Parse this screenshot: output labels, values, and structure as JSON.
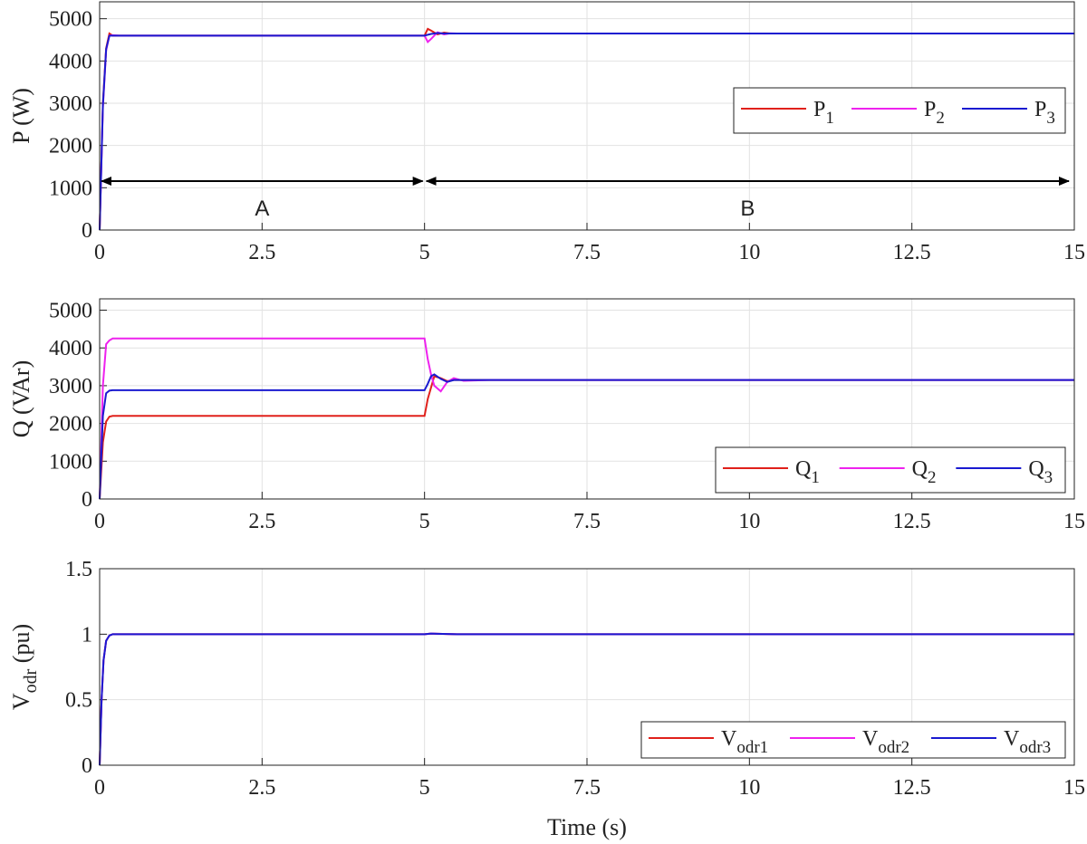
{
  "chart_data": [
    {
      "type": "line",
      "ylabel": "P (W)",
      "xlim": [
        0,
        15
      ],
      "xticks": [
        0,
        2.5,
        5,
        7.5,
        10,
        12.5,
        15
      ],
      "ylim": [
        0,
        5400
      ],
      "yticks": [
        0,
        1000,
        2000,
        3000,
        4000,
        5000
      ],
      "grid": true,
      "annotations": [
        "A",
        "B"
      ],
      "x": [
        0,
        0.05,
        0.1,
        0.15,
        0.2,
        0.3,
        1,
        2,
        3,
        4,
        5,
        5.05,
        5.1,
        5.2,
        5.3,
        5.4,
        5.5,
        6,
        8,
        10,
        12,
        15
      ],
      "series": [
        {
          "name": "P",
          "sub": "1",
          "color": "#e0201b",
          "values": [
            0,
            3000,
            4300,
            4650,
            4600,
            4600,
            4600,
            4600,
            4600,
            4600,
            4600,
            4760,
            4720,
            4630,
            4670,
            4650,
            4650,
            4650,
            4650,
            4650,
            4650,
            4650
          ]
        },
        {
          "name": "P",
          "sub": "2",
          "color": "#ee22ee",
          "values": [
            0,
            2900,
            4250,
            4600,
            4610,
            4600,
            4600,
            4600,
            4600,
            4600,
            4600,
            4450,
            4520,
            4680,
            4630,
            4655,
            4650,
            4650,
            4650,
            4650,
            4650,
            4650
          ]
        },
        {
          "name": "P",
          "sub": "3",
          "color": "#1a1ad0",
          "values": [
            0,
            2950,
            4280,
            4600,
            4600,
            4600,
            4600,
            4600,
            4600,
            4600,
            4600,
            4620,
            4640,
            4660,
            4650,
            4650,
            4650,
            4650,
            4650,
            4650,
            4650,
            4650
          ]
        }
      ]
    },
    {
      "type": "line",
      "ylabel": "Q (VAr)",
      "xlim": [
        0,
        15
      ],
      "xticks": [
        0,
        2.5,
        5,
        7.5,
        10,
        12.5,
        15
      ],
      "ylim": [
        0,
        5300
      ],
      "yticks": [
        0,
        1000,
        2000,
        3000,
        4000,
        5000
      ],
      "grid": true,
      "x": [
        0,
        0.05,
        0.1,
        0.15,
        0.2,
        0.3,
        1,
        2,
        3,
        4,
        5,
        5.05,
        5.1,
        5.15,
        5.25,
        5.35,
        5.45,
        5.6,
        6,
        8,
        10,
        12,
        15
      ],
      "series": [
        {
          "name": "Q",
          "sub": "1",
          "color": "#e0201b",
          "values": [
            0,
            1500,
            2050,
            2180,
            2200,
            2200,
            2200,
            2200,
            2200,
            2200,
            2200,
            2650,
            2950,
            3250,
            3200,
            3120,
            3150,
            3150,
            3150,
            3150,
            3150,
            3150,
            3150
          ]
        },
        {
          "name": "Q",
          "sub": "2",
          "color": "#ee22ee",
          "values": [
            0,
            3000,
            4100,
            4200,
            4250,
            4250,
            4250,
            4250,
            4250,
            4250,
            4250,
            3700,
            3300,
            3000,
            2850,
            3100,
            3200,
            3130,
            3150,
            3150,
            3150,
            3150,
            3150
          ]
        },
        {
          "name": "Q",
          "sub": "3",
          "color": "#1a1ad0",
          "values": [
            0,
            2200,
            2800,
            2870,
            2880,
            2880,
            2880,
            2880,
            2880,
            2880,
            2880,
            3050,
            3250,
            3300,
            3180,
            3100,
            3150,
            3150,
            3150,
            3150,
            3150,
            3150,
            3150
          ]
        }
      ]
    },
    {
      "type": "line",
      "ylabel": "V",
      "ylabel_sub": "odr",
      "ylabel_rest": " (pu)",
      "xlabel": "Time (s)",
      "xlim": [
        0,
        15
      ],
      "xticks": [
        0,
        2.5,
        5,
        7.5,
        10,
        12.5,
        15
      ],
      "ylim": [
        0,
        1.5
      ],
      "yticks": [
        0,
        0.5,
        1,
        1.5
      ],
      "grid": true,
      "x": [
        0,
        0.03,
        0.06,
        0.1,
        0.15,
        0.2,
        1,
        3,
        5,
        5.1,
        5.2,
        5.5,
        8,
        15
      ],
      "series": [
        {
          "name": "V",
          "sub": "odr1",
          "color": "#e0201b",
          "values": [
            0,
            0.5,
            0.8,
            0.95,
            0.99,
            1,
            1,
            1,
            1,
            1.005,
            1.003,
            1,
            1,
            1
          ]
        },
        {
          "name": "V",
          "sub": "odr2",
          "color": "#ee22ee",
          "values": [
            0,
            0.5,
            0.8,
            0.95,
            0.99,
            1,
            1,
            1,
            1,
            1.005,
            1.003,
            1,
            1,
            1
          ]
        },
        {
          "name": "V",
          "sub": "odr3",
          "color": "#1a1ad0",
          "values": [
            0,
            0.5,
            0.8,
            0.95,
            0.99,
            1,
            1,
            1,
            1,
            1.005,
            1.003,
            1,
            1,
            1
          ]
        }
      ]
    }
  ]
}
